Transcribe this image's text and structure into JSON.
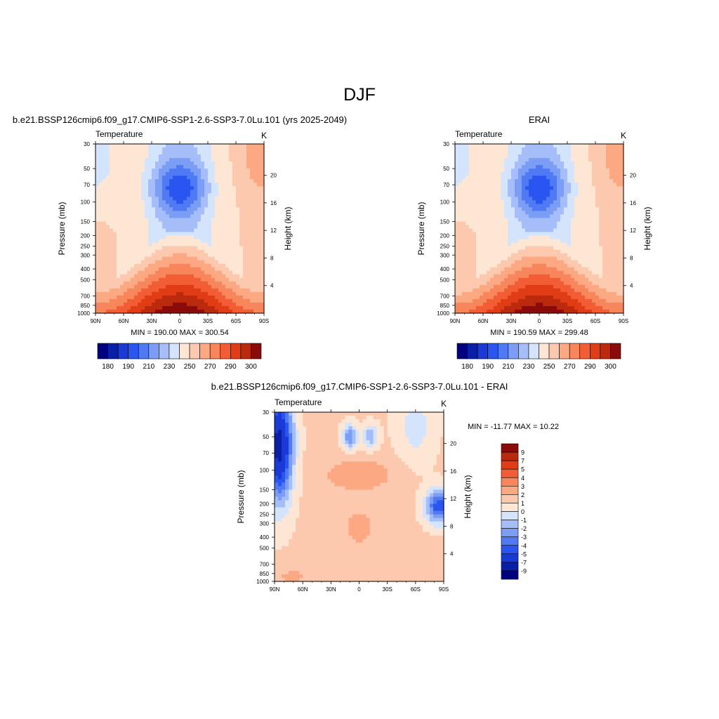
{
  "figure": {
    "title": "DJF"
  },
  "palette": {
    "abs": [
      "#000080",
      "#0a1fa8",
      "#1a3ad8",
      "#2b55f0",
      "#4f7af3",
      "#7b9df6",
      "#a5bef9",
      "#d4e4fc",
      "#fde6d4",
      "#fcc9ae",
      "#fba883",
      "#f7865c",
      "#f25d36",
      "#e03d17",
      "#bb2a0d",
      "#8b0b0b"
    ],
    "diff": [
      "#000080",
      "#0a1fa8",
      "#1a3ad8",
      "#2b55f0",
      "#4f7af3",
      "#7b9df6",
      "#a5bef9",
      "#d4e4fc",
      "#fde6d4",
      "#fcc9ae",
      "#fba883",
      "#f7865c",
      "#f25d36",
      "#e03d17",
      "#bb2a0d",
      "#8b0b0b"
    ]
  },
  "panels": [
    {
      "id": "model",
      "header": "b.e21.BSSP126cmip6.f09_g17.CMIP6-SSP1-2.6-SSP3-7.0Lu.101 (yrs 2025-2049)",
      "left_label": "Temperature",
      "right_label": "K",
      "stats": "MIN = 190.00  MAX = 300.54",
      "ylabel": "Pressure (mb)",
      "y2label": "Height (km)"
    },
    {
      "id": "obs",
      "header": "ERAI",
      "left_label": "Temperature",
      "right_label": "K",
      "stats": "MIN = 190.59  MAX = 299.48",
      "ylabel": "Pressure (mb)",
      "y2label": "Height (km)"
    },
    {
      "id": "diff",
      "header": "b.e21.BSSP126cmip6.f09_g17.CMIP6-SSP1-2.6-SSP3-7.0Lu.101 - ERAI",
      "left_label": "Temperature",
      "right_label": "K",
      "stats": "MIN = -11.77  MAX =  10.22",
      "ylabel": "Pressure (mb)",
      "y2label": "Height (km)"
    }
  ],
  "chart_data": [
    {
      "type": "heatmap",
      "title": "b.e21.BSSP126cmip6.f09_g17.CMIP6-SSP1-2.6-SSP3-7.0Lu.101 (yrs 2025-2049)",
      "field": "Temperature",
      "units": "K",
      "xlabel": "",
      "ylabel": "Pressure (mb)",
      "y2label": "Height (km)",
      "x_ticks": [
        "90N",
        "60N",
        "30N",
        "0",
        "30S",
        "60S",
        "90S"
      ],
      "y_ticks": [
        "30",
        "50",
        "70",
        "100",
        "150",
        "200",
        "250",
        "300",
        "400",
        "500",
        "700",
        "850",
        "1000"
      ],
      "y2_ticks": [
        "20",
        "16",
        "12",
        "8",
        "4"
      ],
      "y_scale": "log",
      "ylim": [
        1000,
        30
      ],
      "contour_levels": [
        180,
        185,
        190,
        195,
        200,
        205,
        210,
        215,
        220,
        225,
        230,
        240,
        250,
        260,
        270,
        280,
        290,
        300
      ],
      "colorbar_labels": [
        "180",
        "190",
        "210",
        "230",
        "250",
        "270",
        "290",
        "300"
      ],
      "min": 190.0,
      "max": 300.54
    },
    {
      "type": "heatmap",
      "title": "ERAI",
      "field": "Temperature",
      "units": "K",
      "xlabel": "",
      "ylabel": "Pressure (mb)",
      "y2label": "Height (km)",
      "x_ticks": [
        "90N",
        "60N",
        "30N",
        "0",
        "30S",
        "60S",
        "90S"
      ],
      "y_ticks": [
        "30",
        "50",
        "70",
        "100",
        "150",
        "200",
        "250",
        "300",
        "400",
        "500",
        "700",
        "850",
        "1000"
      ],
      "y2_ticks": [
        "20",
        "16",
        "12",
        "8",
        "4"
      ],
      "y_scale": "log",
      "ylim": [
        1000,
        30
      ],
      "colorbar_labels": [
        "180",
        "190",
        "210",
        "230",
        "250",
        "270",
        "290",
        "300"
      ],
      "min": 190.59,
      "max": 299.48
    },
    {
      "type": "heatmap",
      "title": "b.e21.BSSP126cmip6.f09_g17.CMIP6-SSP1-2.6-SSP3-7.0Lu.101 - ERAI",
      "field": "Temperature",
      "units": "K",
      "xlabel": "",
      "ylabel": "Pressure (mb)",
      "y2label": "Height (km)",
      "x_ticks": [
        "90N",
        "60N",
        "30N",
        "0",
        "30S",
        "60S",
        "90S"
      ],
      "y_ticks": [
        "30",
        "50",
        "70",
        "100",
        "150",
        "200",
        "250",
        "300",
        "400",
        "500",
        "700",
        "850",
        "1000"
      ],
      "y2_ticks": [
        "20",
        "16",
        "12",
        "8",
        "4"
      ],
      "y_scale": "log",
      "ylim": [
        1000,
        30
      ],
      "colorbar_labels": [
        "9",
        "7",
        "5",
        "4",
        "3",
        "2",
        "1",
        "0",
        "-1",
        "-2",
        "-3",
        "-4",
        "-5",
        "-7",
        "-9"
      ],
      "min": -11.77,
      "max": 10.22
    }
  ]
}
